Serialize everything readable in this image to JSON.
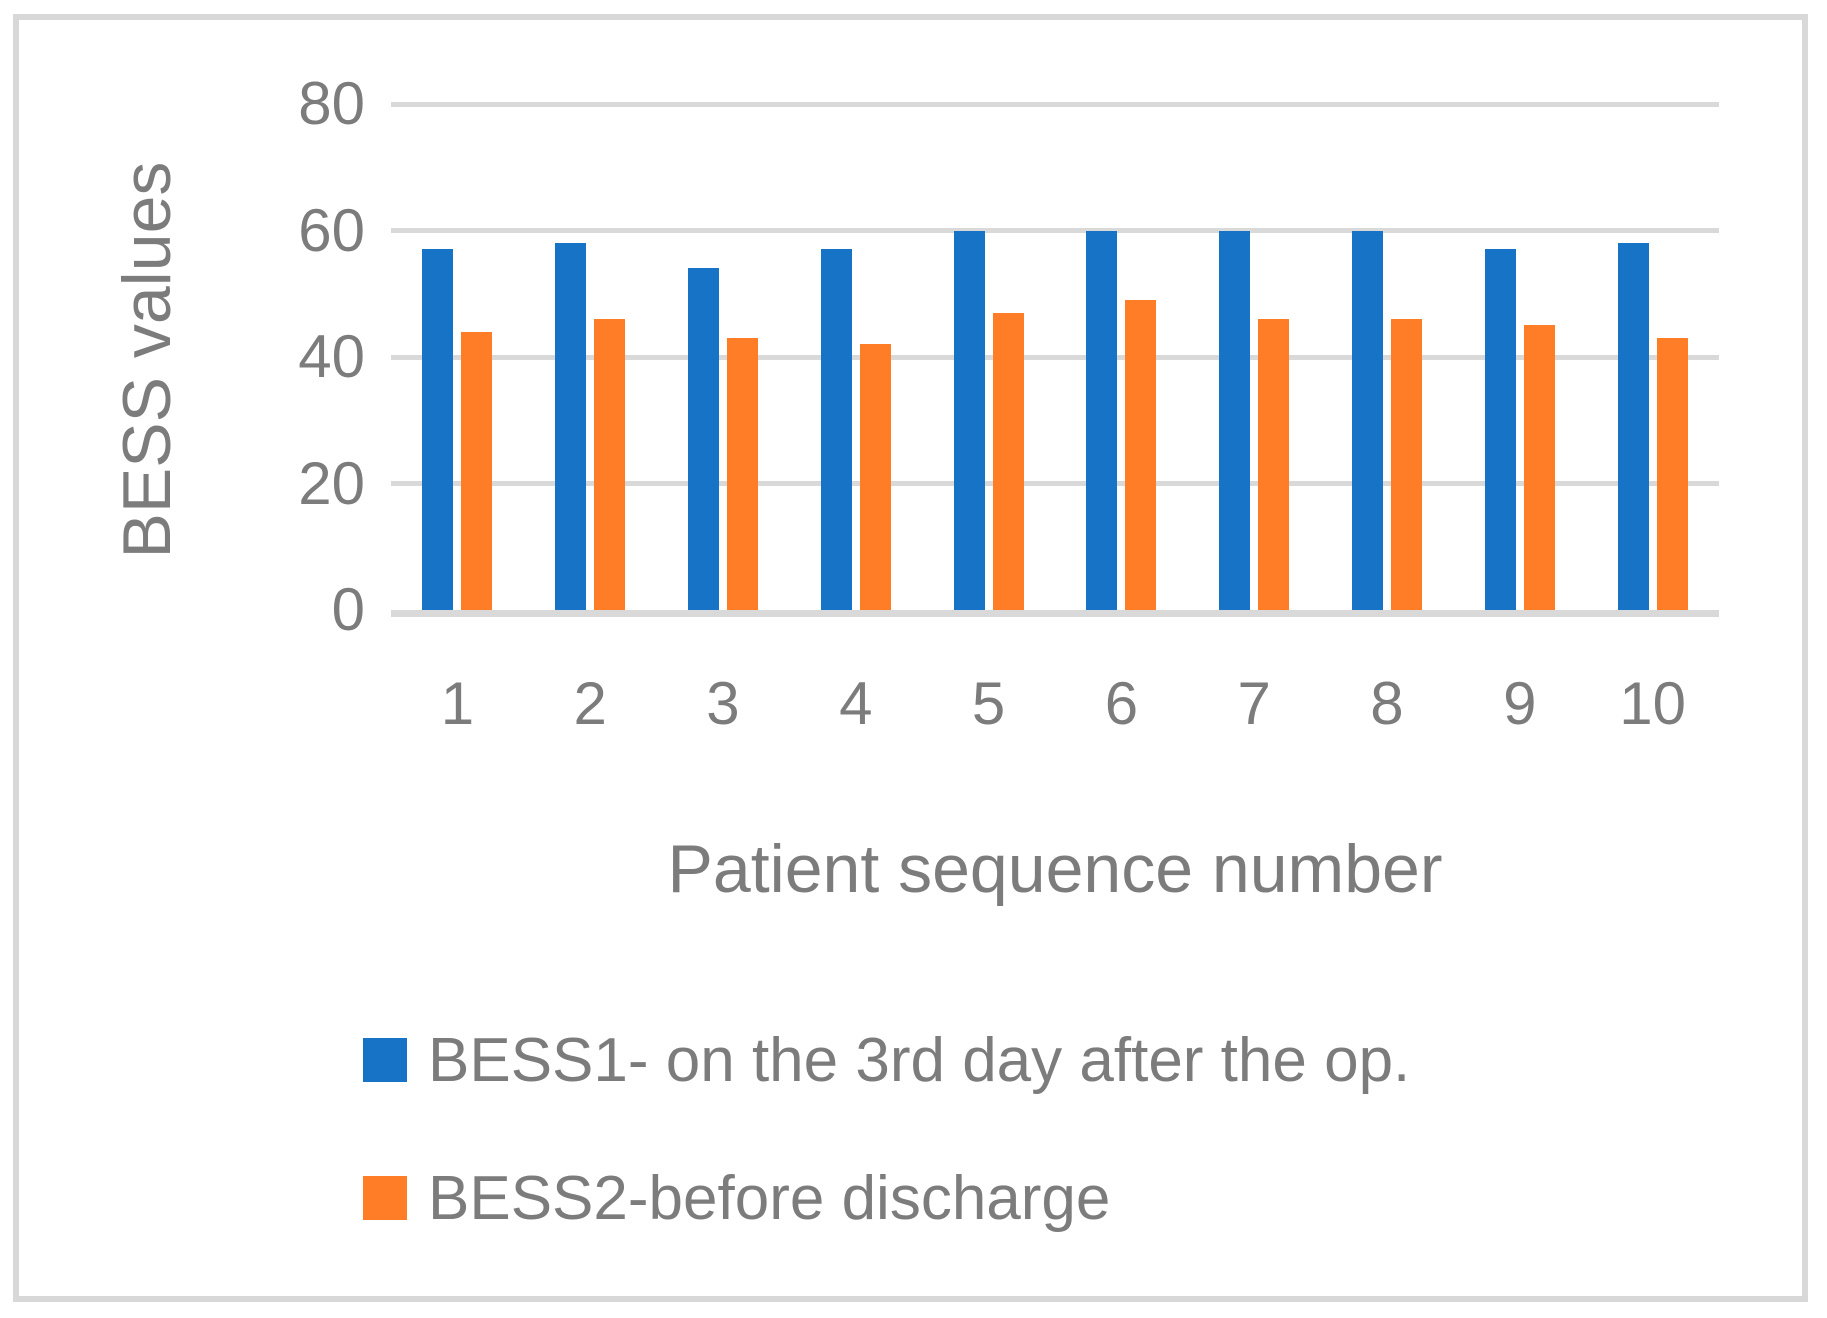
{
  "chart_data": {
    "type": "bar",
    "title": "",
    "xlabel": "Patient sequence number",
    "ylabel": "BESS values",
    "categories": [
      "1",
      "2",
      "3",
      "4",
      "5",
      "6",
      "7",
      "8",
      "9",
      "10"
    ],
    "series": [
      {
        "name": "BESS1- on the 3rd day after the op.",
        "color": "#1773C6",
        "values": [
          57,
          58,
          54,
          57,
          60,
          60,
          60,
          60,
          57,
          58
        ]
      },
      {
        "name": "BESS2-before discharge",
        "color": "#FF7D27",
        "values": [
          44,
          46,
          43,
          42,
          47,
          49,
          46,
          46,
          45,
          43
        ]
      }
    ],
    "ylim": [
      0,
      80
    ],
    "yticks": [
      80,
      60,
      40,
      20,
      0
    ],
    "grid": true,
    "legend_position": "bottom-left"
  },
  "colors": {
    "gridline": "#D9D9D9",
    "frame_border": "#D8D8D8",
    "axis_text": "#7C7C7C",
    "background": "#FFFFFF"
  }
}
